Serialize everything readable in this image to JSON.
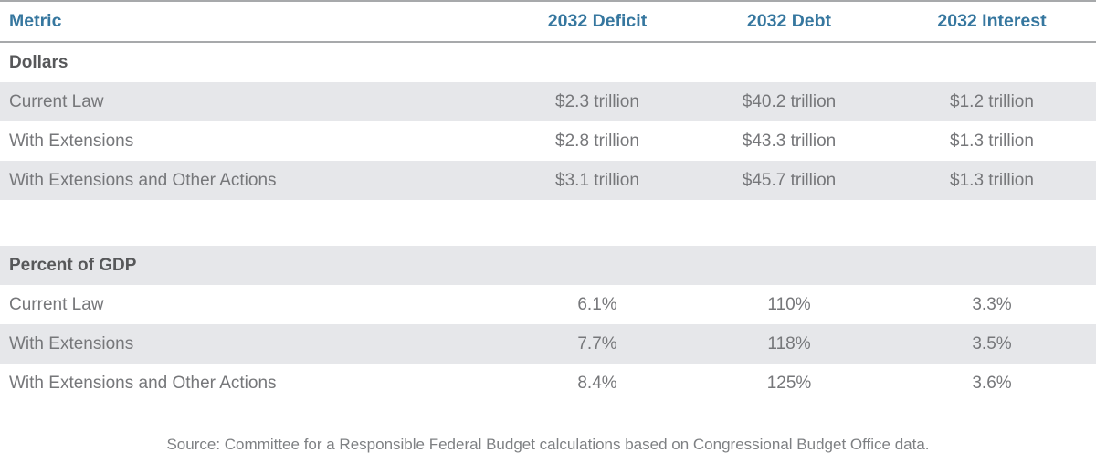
{
  "colors": {
    "header_accent": "#36779f",
    "row_shade": "#e6e7ea",
    "body_text": "#76777a",
    "section_title_text": "#57585a",
    "rule_line": "#a7a9ab"
  },
  "chart_data": {
    "type": "table",
    "columns": [
      "Metric",
      "2032 Deficit",
      "2032 Debt",
      "2032 Interest"
    ],
    "sections": [
      {
        "title": "Dollars",
        "rows": [
          {
            "label": "Current Law",
            "values": [
              "$2.3 trillion",
              "$40.2 trillion",
              "$1.2 trillion"
            ]
          },
          {
            "label": "With Extensions",
            "values": [
              "$2.8 trillion",
              "$43.3 trillion",
              "$1.3 trillion"
            ]
          },
          {
            "label": "With Extensions and Other Actions",
            "values": [
              "$3.1 trillion",
              "$45.7 trillion",
              "$1.3 trillion"
            ]
          }
        ]
      },
      {
        "title": "Percent of GDP",
        "rows": [
          {
            "label": "Current Law",
            "values": [
              "6.1%",
              "110%",
              "3.3%"
            ]
          },
          {
            "label": "With Extensions",
            "values": [
              "7.7%",
              "118%",
              "3.5%"
            ]
          },
          {
            "label": "With Extensions and Other Actions",
            "values": [
              "8.4%",
              "125%",
              "3.6%"
            ]
          }
        ]
      }
    ],
    "source": "Source: Committee for a Responsible Federal Budget calculations based on Congressional Budget Office data."
  }
}
